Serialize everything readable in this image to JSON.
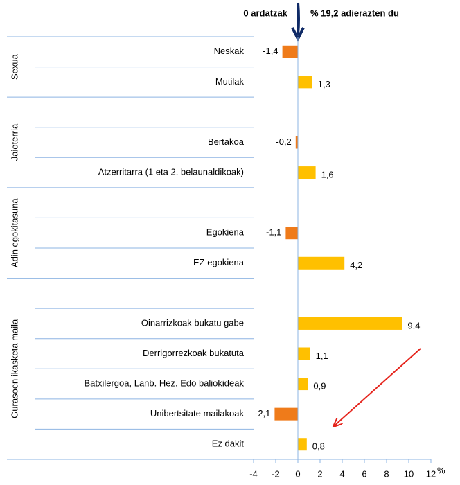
{
  "chart_data": {
    "type": "bar",
    "annotations": [
      "0 ardatzak",
      "% 19,2 adierazten du"
    ],
    "xlabel": "%",
    "xlim": [
      -4,
      12
    ],
    "xticks": [
      -4,
      -2,
      0,
      2,
      4,
      6,
      8,
      10,
      12
    ],
    "colors": {
      "negative": "#ef7b1a",
      "positive": "#ffc000"
    },
    "groups": [
      {
        "name": "Sexua",
        "categories": [
          "Neskak",
          "Mutilak"
        ],
        "values": [
          -1.4,
          1.3
        ],
        "value_labels": [
          "-1,4",
          "1,3"
        ]
      },
      {
        "name": "Jaioterria",
        "categories": [
          null,
          "Bertakoa",
          "Atzerritarra (1 eta 2. belaunaldikoak)"
        ],
        "values": [
          null,
          -0.2,
          1.6
        ],
        "value_labels": [
          null,
          "-0,2",
          "1,6"
        ]
      },
      {
        "name": "Adin egokitasuna",
        "categories": [
          null,
          "Egokiena",
          "EZ egokiena"
        ],
        "values": [
          null,
          -1.1,
          4.2
        ],
        "value_labels": [
          null,
          "-1,1",
          "4,2"
        ]
      },
      {
        "name": "Gurasoen ikasketa maila",
        "categories": [
          null,
          "Oinarrizkoak bukatu gabe",
          "Derrigorrezkoak bukatuta",
          "Batxilergoa, Lanb. Hez. Edo baliokideak",
          "Unibertsitate mailakoak",
          "Ez dakit"
        ],
        "values": [
          null,
          9.4,
          1.1,
          0.9,
          -2.1,
          0.8
        ],
        "value_labels": [
          null,
          "9,4",
          "1,1",
          "0,9",
          "-2,1",
          "0,8"
        ]
      }
    ]
  }
}
